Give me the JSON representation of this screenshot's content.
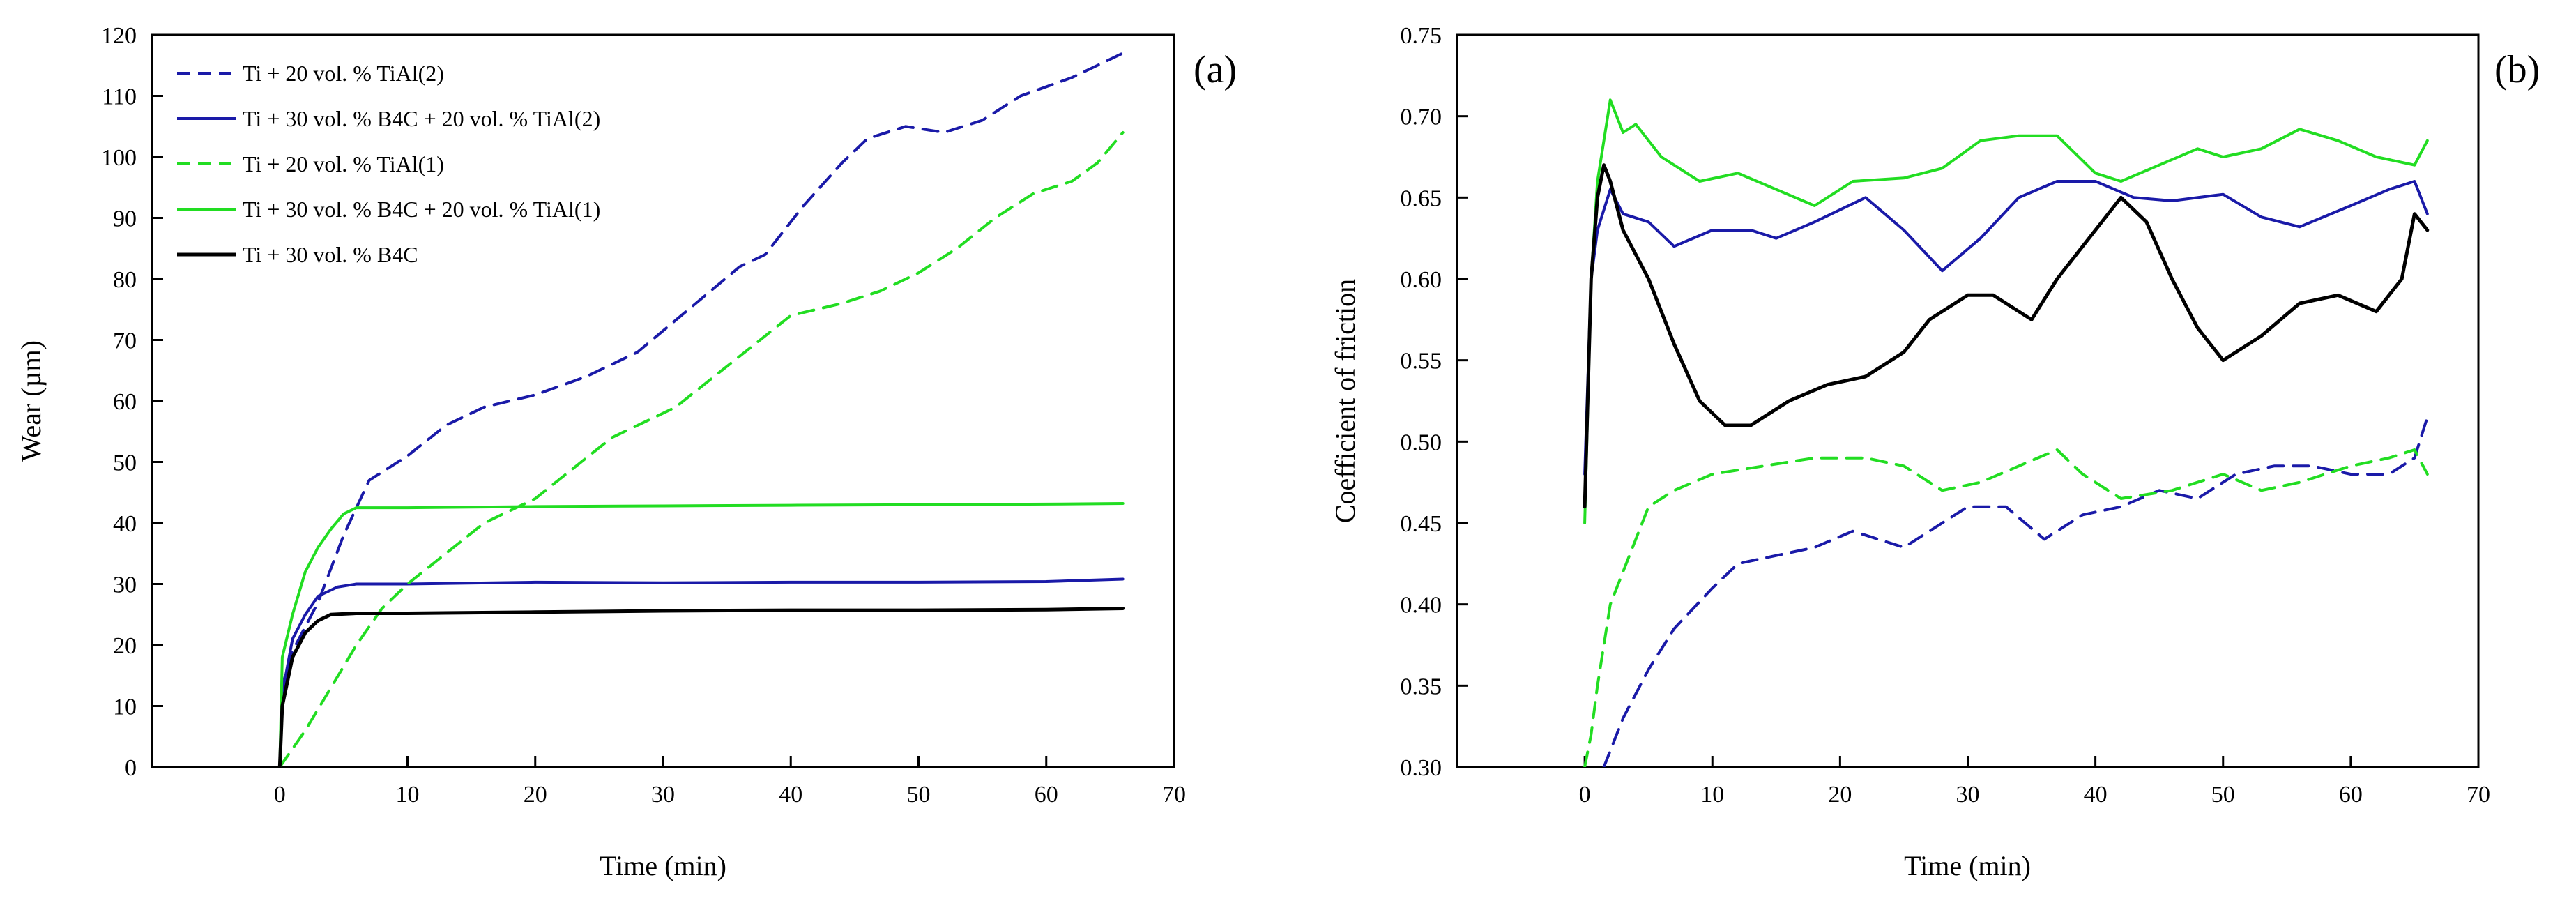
{
  "colors": {
    "blue": "#1a1aa8",
    "green": "#22dd22",
    "black": "#000000"
  },
  "chart_data": [
    {
      "type": "line",
      "panel": "(a)",
      "xlabel": "Time (min)",
      "ylabel": "Wear (µm)",
      "xlim": [
        -10,
        70
      ],
      "ylim": [
        0,
        120
      ],
      "xticks": [
        0,
        10,
        20,
        30,
        40,
        50,
        60,
        70
      ],
      "yticks": [
        0,
        10,
        20,
        30,
        40,
        50,
        60,
        70,
        80,
        90,
        100,
        110,
        120
      ],
      "legend_position": "top-left",
      "series": [
        {
          "name": "Ti + 20 vol. % TiAl(2)",
          "color": "blue",
          "dash": true,
          "points": [
            [
              0,
              0
            ],
            [
              0.3,
              14
            ],
            [
              1,
              19
            ],
            [
              3,
              27
            ],
            [
              5,
              38
            ],
            [
              7,
              47
            ],
            [
              10,
              51
            ],
            [
              13,
              56
            ],
            [
              16,
              59
            ],
            [
              20,
              61
            ],
            [
              24,
              64
            ],
            [
              28,
              68
            ],
            [
              32,
              75
            ],
            [
              36,
              82
            ],
            [
              38,
              84
            ],
            [
              41,
              92
            ],
            [
              44,
              99
            ],
            [
              46,
              103
            ],
            [
              49,
              105
            ],
            [
              52,
              104
            ],
            [
              55,
              106
            ],
            [
              58,
              110
            ],
            [
              62,
              113
            ],
            [
              66,
              117
            ]
          ]
        },
        {
          "name": "Ti + 30 vol. % B4C + 20 vol. % TiAl(2)",
          "color": "blue",
          "dash": false,
          "points": [
            [
              0,
              0
            ],
            [
              0.2,
              12
            ],
            [
              1,
              21
            ],
            [
              2,
              25
            ],
            [
              3,
              28
            ],
            [
              4.5,
              29.5
            ],
            [
              6,
              30
            ],
            [
              10,
              30
            ],
            [
              20,
              30.3
            ],
            [
              30,
              30.2
            ],
            [
              40,
              30.3
            ],
            [
              50,
              30.3
            ],
            [
              60,
              30.4
            ],
            [
              66,
              30.8
            ]
          ]
        },
        {
          "name": "Ti + 20 vol. % TiAl(1)",
          "color": "green",
          "dash": true,
          "points": [
            [
              0,
              0
            ],
            [
              2,
              6
            ],
            [
              4,
              13
            ],
            [
              6,
              20
            ],
            [
              8,
              26
            ],
            [
              10,
              30
            ],
            [
              13,
              35
            ],
            [
              16,
              40
            ],
            [
              20,
              44
            ],
            [
              23,
              49
            ],
            [
              26,
              54
            ],
            [
              29,
              57
            ],
            [
              31,
              59
            ],
            [
              34,
              64
            ],
            [
              37,
              69
            ],
            [
              40,
              74
            ],
            [
              44,
              76
            ],
            [
              47,
              78
            ],
            [
              50,
              81
            ],
            [
              53,
              85
            ],
            [
              56,
              90
            ],
            [
              59,
              94
            ],
            [
              62,
              96
            ],
            [
              64,
              99
            ],
            [
              66,
              104
            ]
          ]
        },
        {
          "name": "Ti + 30 vol. % B4C + 20 vol. % TiAl(1)",
          "color": "green",
          "dash": false,
          "points": [
            [
              0,
              0
            ],
            [
              0.2,
              18
            ],
            [
              1,
              25
            ],
            [
              2,
              32
            ],
            [
              3,
              36
            ],
            [
              4,
              39
            ],
            [
              5,
              41.5
            ],
            [
              6,
              42.5
            ],
            [
              10,
              42.5
            ],
            [
              20,
              42.7
            ],
            [
              30,
              42.8
            ],
            [
              40,
              42.9
            ],
            [
              50,
              43
            ],
            [
              60,
              43.1
            ],
            [
              66,
              43.2
            ]
          ]
        },
        {
          "name": "Ti + 30 vol. % B4C",
          "color": "black",
          "dash": false,
          "points": [
            [
              0,
              0
            ],
            [
              0.2,
              10
            ],
            [
              1,
              18
            ],
            [
              2,
              22
            ],
            [
              3,
              24
            ],
            [
              4,
              25
            ],
            [
              6,
              25.2
            ],
            [
              10,
              25.2
            ],
            [
              20,
              25.4
            ],
            [
              30,
              25.6
            ],
            [
              40,
              25.7
            ],
            [
              50,
              25.7
            ],
            [
              60,
              25.8
            ],
            [
              66,
              26
            ]
          ]
        }
      ]
    },
    {
      "type": "line",
      "panel": "(b)",
      "xlabel": "Time (min)",
      "ylabel": "Coefficient of friction",
      "xlim": [
        -10,
        70
      ],
      "ylim": [
        0.3,
        0.75
      ],
      "xticks": [
        0,
        10,
        20,
        30,
        40,
        50,
        60,
        70
      ],
      "yticks": [
        "0.30",
        "0.35",
        "0.40",
        "0.45",
        "0.50",
        "0.55",
        "0.60",
        "0.65",
        "0.70",
        "0.75"
      ],
      "series": [
        {
          "name": "Ti + 20 vol. % TiAl(2)",
          "color": "blue",
          "dash": true,
          "points": [
            [
              1.5,
              0.3
            ],
            [
              3,
              0.33
            ],
            [
              5,
              0.36
            ],
            [
              7,
              0.385
            ],
            [
              10,
              0.41
            ],
            [
              12,
              0.425
            ],
            [
              15,
              0.43
            ],
            [
              18,
              0.435
            ],
            [
              21,
              0.445
            ],
            [
              23,
              0.44
            ],
            [
              25,
              0.435
            ],
            [
              28,
              0.45
            ],
            [
              30,
              0.46
            ],
            [
              33,
              0.46
            ],
            [
              36,
              0.44
            ],
            [
              39,
              0.455
            ],
            [
              42,
              0.46
            ],
            [
              45,
              0.47
            ],
            [
              48,
              0.465
            ],
            [
              51,
              0.48
            ],
            [
              54,
              0.485
            ],
            [
              57,
              0.485
            ],
            [
              60,
              0.48
            ],
            [
              63,
              0.48
            ],
            [
              65,
              0.49
            ],
            [
              66,
              0.515
            ]
          ]
        },
        {
          "name": "Ti + 30 vol. % B4C + 20 vol. % TiAl(2)",
          "color": "blue",
          "dash": false,
          "points": [
            [
              0,
              0.48
            ],
            [
              0.5,
              0.6
            ],
            [
              1,
              0.63
            ],
            [
              2,
              0.655
            ],
            [
              3,
              0.64
            ],
            [
              5,
              0.635
            ],
            [
              7,
              0.62
            ],
            [
              10,
              0.63
            ],
            [
              13,
              0.63
            ],
            [
              15,
              0.625
            ],
            [
              18,
              0.635
            ],
            [
              22,
              0.65
            ],
            [
              25,
              0.63
            ],
            [
              28,
              0.605
            ],
            [
              31,
              0.625
            ],
            [
              34,
              0.65
            ],
            [
              37,
              0.66
            ],
            [
              40,
              0.66
            ],
            [
              43,
              0.65
            ],
            [
              46,
              0.648
            ],
            [
              50,
              0.652
            ],
            [
              53,
              0.638
            ],
            [
              56,
              0.632
            ],
            [
              60,
              0.645
            ],
            [
              63,
              0.655
            ],
            [
              65,
              0.66
            ],
            [
              66,
              0.64
            ]
          ]
        },
        {
          "name": "Ti + 20 vol. % TiAl(1)",
          "color": "green",
          "dash": true,
          "points": [
            [
              0,
              0.3
            ],
            [
              0.5,
              0.32
            ],
            [
              1,
              0.35
            ],
            [
              2,
              0.4
            ],
            [
              3,
              0.42
            ],
            [
              4,
              0.44
            ],
            [
              5,
              0.46
            ],
            [
              7,
              0.47
            ],
            [
              10,
              0.48
            ],
            [
              14,
              0.485
            ],
            [
              18,
              0.49
            ],
            [
              22,
              0.49
            ],
            [
              25,
              0.485
            ],
            [
              28,
              0.47
            ],
            [
              31,
              0.475
            ],
            [
              34,
              0.485
            ],
            [
              37,
              0.495
            ],
            [
              39,
              0.48
            ],
            [
              42,
              0.465
            ],
            [
              46,
              0.47
            ],
            [
              50,
              0.48
            ],
            [
              53,
              0.47
            ],
            [
              56,
              0.475
            ],
            [
              60,
              0.485
            ],
            [
              63,
              0.49
            ],
            [
              65,
              0.495
            ],
            [
              66,
              0.48
            ]
          ]
        },
        {
          "name": "Ti + 30 vol. % B4C + 20 vol. % TiAl(1)",
          "color": "green",
          "dash": false,
          "points": [
            [
              0,
              0.45
            ],
            [
              0.5,
              0.6
            ],
            [
              1,
              0.66
            ],
            [
              2,
              0.71
            ],
            [
              3,
              0.69
            ],
            [
              4,
              0.695
            ],
            [
              6,
              0.675
            ],
            [
              9,
              0.66
            ],
            [
              12,
              0.665
            ],
            [
              15,
              0.655
            ],
            [
              18,
              0.645
            ],
            [
              21,
              0.66
            ],
            [
              25,
              0.662
            ],
            [
              28,
              0.668
            ],
            [
              31,
              0.685
            ],
            [
              34,
              0.688
            ],
            [
              37,
              0.688
            ],
            [
              40,
              0.665
            ],
            [
              42,
              0.66
            ],
            [
              45,
              0.67
            ],
            [
              48,
              0.68
            ],
            [
              50,
              0.675
            ],
            [
              53,
              0.68
            ],
            [
              56,
              0.692
            ],
            [
              59,
              0.685
            ],
            [
              62,
              0.675
            ],
            [
              65,
              0.67
            ],
            [
              66,
              0.685
            ]
          ]
        },
        {
          "name": "Ti + 30 vol. % B4C",
          "color": "black",
          "dash": false,
          "points": [
            [
              0,
              0.46
            ],
            [
              0.5,
              0.6
            ],
            [
              1,
              0.65
            ],
            [
              1.5,
              0.67
            ],
            [
              2,
              0.66
            ],
            [
              3,
              0.63
            ],
            [
              5,
              0.6
            ],
            [
              7,
              0.56
            ],
            [
              9,
              0.525
            ],
            [
              11,
              0.51
            ],
            [
              13,
              0.51
            ],
            [
              16,
              0.525
            ],
            [
              19,
              0.535
            ],
            [
              22,
              0.54
            ],
            [
              25,
              0.555
            ],
            [
              27,
              0.575
            ],
            [
              30,
              0.59
            ],
            [
              32,
              0.59
            ],
            [
              35,
              0.575
            ],
            [
              37,
              0.6
            ],
            [
              40,
              0.63
            ],
            [
              42,
              0.65
            ],
            [
              44,
              0.635
            ],
            [
              46,
              0.6
            ],
            [
              48,
              0.57
            ],
            [
              50,
              0.55
            ],
            [
              53,
              0.565
            ],
            [
              56,
              0.585
            ],
            [
              59,
              0.59
            ],
            [
              62,
              0.58
            ],
            [
              64,
              0.6
            ],
            [
              65,
              0.64
            ],
            [
              66,
              0.63
            ]
          ]
        }
      ]
    }
  ]
}
